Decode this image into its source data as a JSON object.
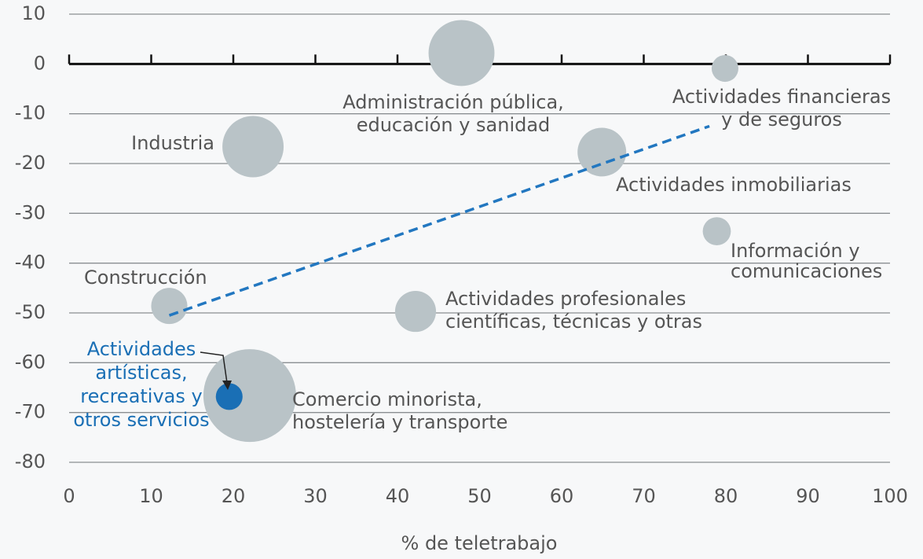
{
  "chart_data": {
    "type": "scatter",
    "x_label": "% de teletrabajo",
    "xlim": [
      0,
      100
    ],
    "xticks": [
      0,
      10,
      20,
      30,
      40,
      50,
      60,
      70,
      80,
      90,
      100
    ],
    "ylim": [
      -80,
      10
    ],
    "yticks": [
      -80,
      -70,
      -60,
      -50,
      -40,
      -30,
      -20,
      -10,
      0,
      10
    ],
    "grid": true,
    "series": [
      {
        "names": [
          [
            "Administración pública,",
            "educación y sanidad"
          ],
          [
            "Actividades financieras",
            "y de seguros"
          ],
          [
            "Industria"
          ],
          [
            "Actividades inmobiliarias"
          ],
          [
            "Información y",
            "comunicaciones"
          ],
          [
            "Construcción"
          ],
          [
            "Actividades profesionales",
            "científicas, técnicas y otras"
          ],
          [
            "Comercio minorista,",
            "hostelería y transporte"
          ],
          [
            "Actividades",
            "artísticas,",
            "recreativas y",
            "otros servicios"
          ]
        ],
        "x": [
          47.8,
          79.9,
          22.4,
          64.9,
          78.9,
          12.2,
          42.2,
          22.0,
          19.5
        ],
        "values": [
          2.2,
          -0.9,
          -16.6,
          -17.7,
          -33.6,
          -48.6,
          -49.7,
          -66.6,
          -66.8
        ],
        "sizes": [
          17.6,
          2.9,
          15.2,
          9.6,
          3.2,
          5.3,
          6.8,
          34.8,
          2.9
        ],
        "colors": [
          "#b9c3c7",
          "#b9c3c7",
          "#b9c3c7",
          "#b9c3c7",
          "#b9c3c7",
          "#b9c3c7",
          "#b9c3c7",
          "#b9c3c7",
          "#1a6fb5"
        ]
      }
    ],
    "trendline": {
      "color": "#2277c0",
      "x": [
        12.2,
        78
      ],
      "values": [
        -50.5,
        -12.5
      ]
    }
  }
}
